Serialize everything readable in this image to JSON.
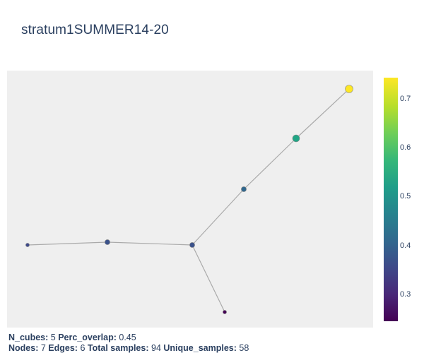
{
  "title": "stratum1SUMMER14-20",
  "colorbar": {
    "colors": [
      "#440154",
      "#482878",
      "#3e4989",
      "#31688e",
      "#26828e",
      "#1f9e89",
      "#35b779",
      "#6ece58",
      "#b5de2b",
      "#fde725"
    ],
    "range": [
      0.245,
      0.745
    ],
    "ticks": [
      "0.3",
      "0.4",
      "0.5",
      "0.6",
      "0.7"
    ]
  },
  "graph": {
    "nodes": [
      {
        "id": "n0",
        "color": "#3e4989"
      },
      {
        "id": "n1",
        "color": "#3b528b"
      },
      {
        "id": "n2",
        "color": "#3b528b"
      },
      {
        "id": "n3",
        "color": "#440154"
      },
      {
        "id": "n4",
        "color": "#31688e"
      },
      {
        "id": "n5",
        "color": "#21a685"
      },
      {
        "id": "n6",
        "color": "#fde725"
      }
    ],
    "edges": [
      [
        "n0",
        "n1"
      ],
      [
        "n1",
        "n2"
      ],
      [
        "n2",
        "n3"
      ],
      [
        "n2",
        "n4"
      ],
      [
        "n4",
        "n5"
      ],
      [
        "n5",
        "n6"
      ]
    ],
    "edge_color": "#aaaaaa"
  },
  "footer": {
    "line1": [
      {
        "label": "N_cubes:",
        "value": "5"
      },
      {
        "label": "Perc_overlap:",
        "value": "0.45"
      }
    ],
    "line2": [
      {
        "label": "Nodes:",
        "value": "7"
      },
      {
        "label": "Edges:",
        "value": "6"
      },
      {
        "label": "Total samples:",
        "value": "94"
      },
      {
        "label": "Unique_samples:",
        "value": "58"
      }
    ]
  }
}
